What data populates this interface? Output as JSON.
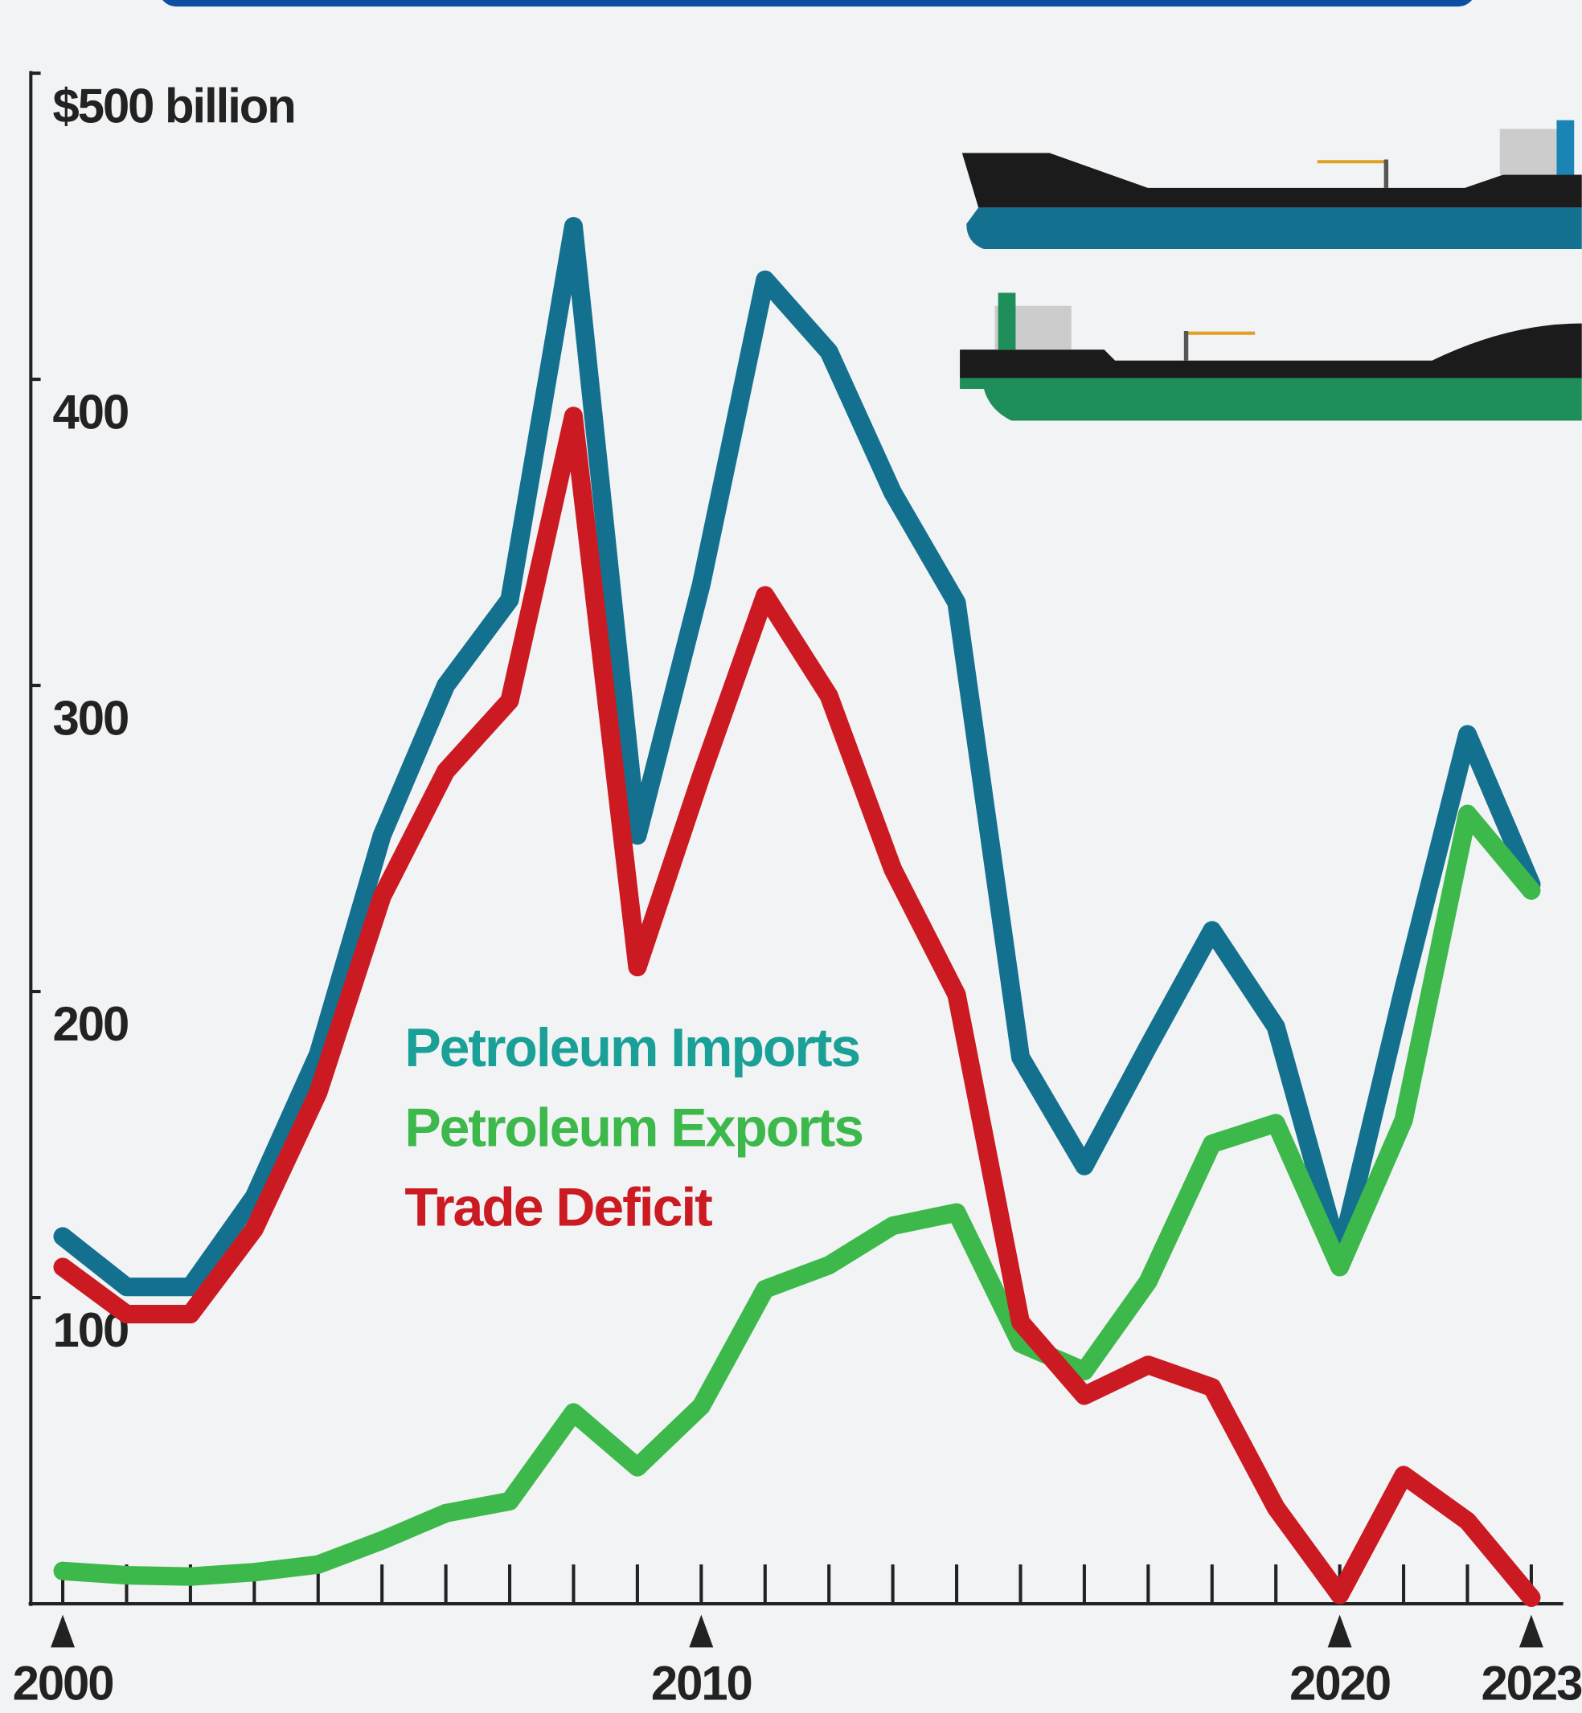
{
  "chart_data": {
    "type": "line",
    "x": [
      2000,
      2001,
      2002,
      2003,
      2004,
      2005,
      2006,
      2007,
      2008,
      2009,
      2010,
      2011,
      2012,
      2013,
      2014,
      2015,
      2016,
      2017,
      2018,
      2019,
      2020,
      2021,
      2022,
      2023
    ],
    "series": [
      {
        "name": "Petroleum Imports",
        "color": "#13708f",
        "label_color": "#1aa097",
        "values": [
          120,
          103.5,
          103.5,
          133,
          179.5,
          251,
          300,
          328,
          450,
          251,
          333,
          432.5,
          409,
          363,
          327,
          178.5,
          143,
          182,
          220,
          188.5,
          113.5,
          201,
          284,
          235
        ]
      },
      {
        "name": "Petroleum Exports",
        "color": "#3db84a",
        "label_color": "#3db84a",
        "values": [
          10.7,
          9.3,
          8.9,
          10.3,
          12.8,
          20.7,
          29.6,
          33.5,
          62.5,
          44.6,
          64.6,
          102.8,
          110.6,
          123.5,
          127.8,
          85,
          76,
          105.3,
          150.3,
          157,
          110,
          158,
          258,
          233
        ]
      },
      {
        "name": "Trade Deficit",
        "color": "#cc1a22",
        "label_color": "#cc1a22",
        "values": [
          110,
          94.6,
          94.6,
          122.4,
          167,
          231,
          272,
          295,
          388,
          208,
          270.5,
          329.4,
          296.6,
          240,
          199,
          92,
          68,
          78,
          70.7,
          31.4,
          2.9,
          42,
          27,
          2
        ]
      }
    ],
    "xlim": [
      1999.5,
      2023.5
    ],
    "xticks": [
      2000,
      2010,
      2020,
      2023
    ],
    "xminor_ticks": [
      2000,
      2001,
      2002,
      2003,
      2004,
      2005,
      2006,
      2007,
      2008,
      2009,
      2010,
      2011,
      2012,
      2013,
      2014,
      2015,
      2016,
      2017,
      2018,
      2019,
      2020,
      2021,
      2022,
      2023
    ],
    "ylim": [
      0,
      500
    ],
    "yticks": [
      100,
      200,
      300,
      400,
      {
        "value": 500,
        "label": "$500 billion"
      }
    ]
  }
}
